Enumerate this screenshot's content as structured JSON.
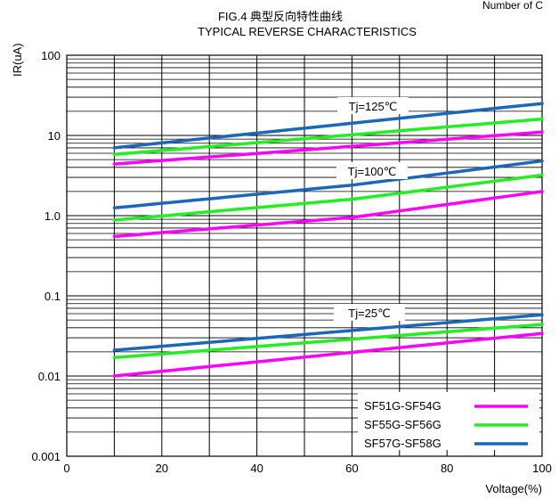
{
  "chart_data": {
    "type": "line",
    "title_line1": "FIG.4  典型反向特性曲线",
    "title_line2": "TYPICAL REVERSE CHARACTERISTICS",
    "corner_text": "Number of C",
    "xlabel": "Voltage(%)",
    "ylabel": "IR(uA)",
    "x_scale": "linear",
    "y_scale": "log",
    "xlim": [
      0,
      100
    ],
    "ylim": [
      0.001,
      100
    ],
    "x_ticks": [
      "0",
      "20",
      "40",
      "60",
      "80",
      "100"
    ],
    "y_ticks": [
      "0.001",
      "0.01",
      "0.1",
      "1.0",
      "10",
      "100"
    ],
    "grid": true,
    "legend_position": "bottom-right",
    "annotations": [
      "Tj=125℃",
      "Tj=100℃",
      "Tj=25℃"
    ],
    "series": [
      {
        "name": "SF51G-SF54G",
        "color": "#ff00ff",
        "curves": [
          {
            "temp": "25",
            "x": [
              10,
              100
            ],
            "y": [
              0.01,
              0.034
            ]
          },
          {
            "temp": "100",
            "x": [
              10,
              60,
              100
            ],
            "y": [
              0.55,
              0.95,
              2.0
            ]
          },
          {
            "temp": "125",
            "x": [
              10,
              100
            ],
            "y": [
              4.4,
              11
            ]
          }
        ]
      },
      {
        "name": "SF55G-SF56G",
        "color": "#22ee22",
        "curves": [
          {
            "temp": "25",
            "x": [
              10,
              100
            ],
            "y": [
              0.017,
              0.044
            ]
          },
          {
            "temp": "100",
            "x": [
              10,
              60,
              100
            ],
            "y": [
              0.88,
              1.6,
              3.2
            ]
          },
          {
            "temp": "125",
            "x": [
              10,
              100
            ],
            "y": [
              5.8,
              16
            ]
          }
        ]
      },
      {
        "name": "SF57G-SF58G",
        "color": "#1b67b8",
        "curves": [
          {
            "temp": "25",
            "x": [
              10,
              100
            ],
            "y": [
              0.021,
              0.058
            ]
          },
          {
            "temp": "100",
            "x": [
              10,
              60,
              100
            ],
            "y": [
              1.25,
              2.4,
              4.8
            ]
          },
          {
            "temp": "125",
            "x": [
              10,
              100
            ],
            "y": [
              7.0,
              25
            ]
          }
        ]
      }
    ]
  }
}
